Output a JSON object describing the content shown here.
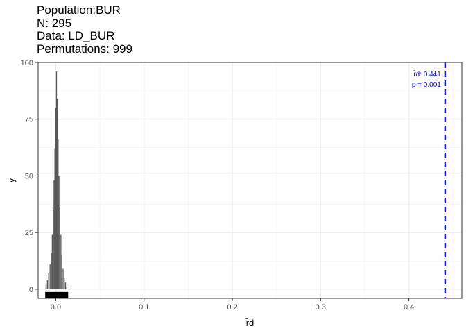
{
  "title_lines": [
    "Population:BUR",
    "N: 295",
    "Data: LD_BUR",
    "Permutations: 999"
  ],
  "chart_data": {
    "type": "bar",
    "subtype": "histogram",
    "xlabel": "r̄d",
    "ylabel": "y",
    "xlim": [
      -0.02,
      0.46
    ],
    "ylim": [
      -4,
      100
    ],
    "x_ticks": [
      0.0,
      0.1,
      0.2,
      0.3,
      0.4
    ],
    "x_tick_labels": [
      "0.0",
      "0.1",
      "0.2",
      "0.3",
      "0.4"
    ],
    "y_ticks": [
      0,
      25,
      50,
      75,
      100
    ],
    "y_tick_labels": [
      "0",
      "25",
      "50",
      "75",
      "100"
    ],
    "grid": true,
    "bar_color": "#595959",
    "bins": [
      {
        "x": -0.011,
        "count": 2
      },
      {
        "x": -0.0095,
        "count": 4
      },
      {
        "x": -0.008,
        "count": 7
      },
      {
        "x": -0.0065,
        "count": 11
      },
      {
        "x": -0.005,
        "count": 16
      },
      {
        "x": -0.004,
        "count": 24
      },
      {
        "x": -0.003,
        "count": 35
      },
      {
        "x": -0.002,
        "count": 48
      },
      {
        "x": -0.001,
        "count": 62
      },
      {
        "x": 0.0,
        "count": 80
      },
      {
        "x": 0.0008,
        "count": 96
      },
      {
        "x": 0.0016,
        "count": 84
      },
      {
        "x": 0.0026,
        "count": 66
      },
      {
        "x": 0.0036,
        "count": 50
      },
      {
        "x": 0.0046,
        "count": 36
      },
      {
        "x": 0.0058,
        "count": 24
      },
      {
        "x": 0.007,
        "count": 15
      },
      {
        "x": 0.0083,
        "count": 9
      },
      {
        "x": 0.0096,
        "count": 5
      },
      {
        "x": 0.011,
        "count": 3
      },
      {
        "x": 0.0125,
        "count": 1
      }
    ],
    "rug_range": [
      -0.012,
      0.014
    ],
    "observed": {
      "value": 0.441,
      "label": "r̄d: 0.441",
      "p_label": "p = 0.001",
      "line_color": "#0000ff",
      "line_style": "dashed"
    }
  }
}
